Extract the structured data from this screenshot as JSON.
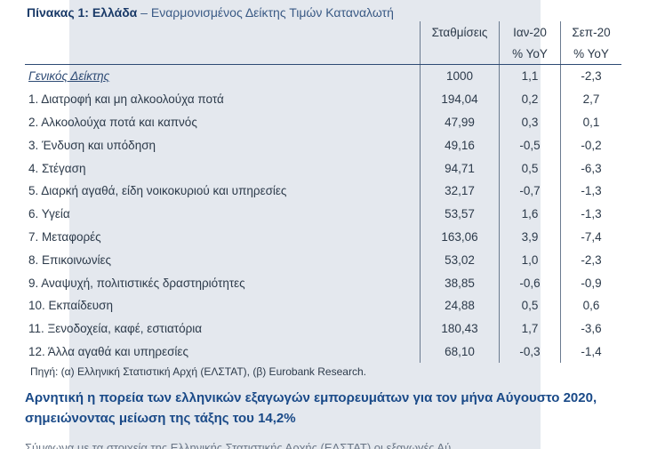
{
  "table": {
    "caption_bold": "Πίνακας 1: Ελλάδα",
    "caption_rest": " – Εναρμονισμένος Δείκτης Τιμών Καταναλωτή",
    "headers": {
      "weights": "Σταθμίσεις",
      "jan": "Ιαν-20",
      "sep": "Σεπ-20",
      "yoy_jan": "% YoY",
      "yoy_sep": "% YoY"
    },
    "rows": [
      {
        "label": "Γενικός Δείκτης",
        "weight": "1000",
        "jan": "1,1",
        "sep": "-2,3"
      },
      {
        "label": "1. Διατροφή και μη αλκοολούχα ποτά",
        "weight": "194,04",
        "jan": "0,2",
        "sep": "2,7"
      },
      {
        "label": "2. Αλκοολούχα ποτά και καπνός",
        "weight": "47,99",
        "jan": "0,3",
        "sep": "0,1"
      },
      {
        "label": "3. Ένδυση και υπόδηση",
        "weight": "49,16",
        "jan": "-0,5",
        "sep": "-0,2"
      },
      {
        "label": "4. Στέγαση",
        "weight": "94,71",
        "jan": "0,5",
        "sep": "-6,3"
      },
      {
        "label": "5. Διαρκή αγαθά, είδη νοικοκυριού και υπηρεσίες",
        "weight": "32,17",
        "jan": "-0,7",
        "sep": "-1,3"
      },
      {
        "label": "6. Υγεία",
        "weight": "53,57",
        "jan": "1,6",
        "sep": "-1,3"
      },
      {
        "label": "7. Μεταφορές",
        "weight": "163,06",
        "jan": "3,9",
        "sep": "-7,4"
      },
      {
        "label": "8. Επικοινωνίες",
        "weight": "53,02",
        "jan": "1,0",
        "sep": "-2,3"
      },
      {
        "label": "9. Αναψυχή, πολιτιστικές δραστηριότητες",
        "weight": "38,85",
        "jan": "-0,6",
        "sep": "-0,9"
      },
      {
        "label": "10. Εκπαίδευση",
        "weight": "24,88",
        "jan": "0,5",
        "sep": "0,6"
      },
      {
        "label": "11. Ξενοδοχεία, καφέ, εστιατόρια",
        "weight": "180,43",
        "jan": "1,7",
        "sep": "-3,6"
      },
      {
        "label": "12. Άλλα αγαθά και υπηρεσίες",
        "weight": "68,10",
        "jan": "-0,3",
        "sep": "-1,4"
      }
    ],
    "source": "Πηγή: (α) Ελληνική Στατιστική Αρχή (ΕΛΣΤΑΤ), (β) Eurobank Research."
  },
  "heading": "Αρνητική η πορεία των ελληνικών εξαγωγών εμπορευμάτων για τον μήνα Αύγουστο 2020, σημειώνοντας μείωση της τάξης του 14,2%",
  "cut_line": "Σύμφωνα με τα στοιχεία της Ελληνικής Στατιστικής Αρχής (ΕΛΣΤΑΤ) οι εξαγωγές Αύ"
}
